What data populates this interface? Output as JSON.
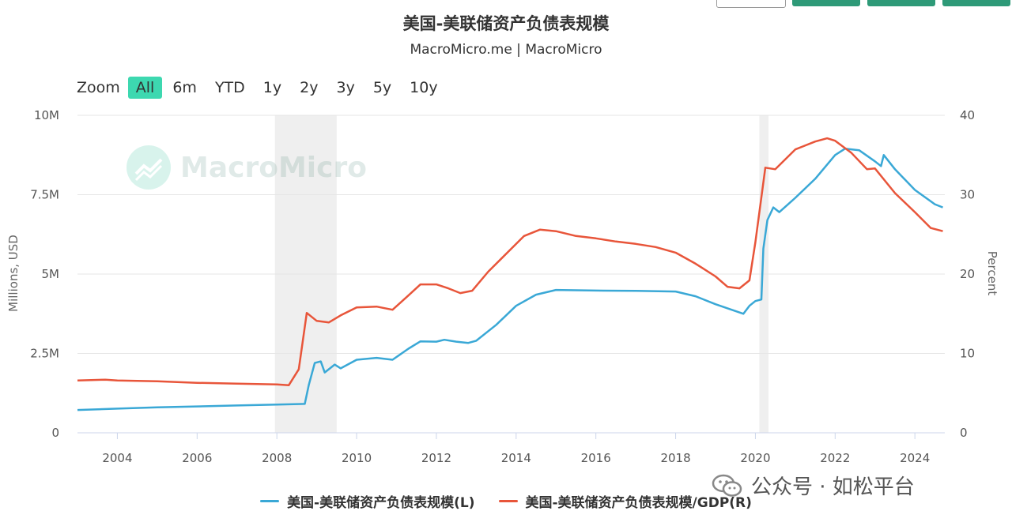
{
  "title": "美国-美联储资产负债表规模",
  "subtitle": "MacroMicro.me | MacroMicro",
  "zoom": {
    "label": "Zoom",
    "options": [
      "All",
      "6m",
      "YTD",
      "1y",
      "2y",
      "3y",
      "5y",
      "10y"
    ],
    "active": "All"
  },
  "watermark": "MacroMicro",
  "credit": "公众号 · 如松平台",
  "colors": {
    "left_series": "#3aa8d6",
    "right_series": "#e8553a",
    "recession": "#efefef"
  },
  "chart_data": {
    "type": "line",
    "x_ticks": [
      2004,
      2006,
      2008,
      2010,
      2012,
      2014,
      2016,
      2018,
      2020,
      2022,
      2024
    ],
    "xlim": [
      2003.0,
      2024.75
    ],
    "y_left": {
      "label": "Millions, USD",
      "ticks": [
        "0",
        "2.5M",
        "5M",
        "7.5M",
        "10M"
      ],
      "lim": [
        0,
        10000000
      ]
    },
    "y_right": {
      "label": "Percent",
      "ticks": [
        "0",
        "10",
        "20",
        "30",
        "40"
      ],
      "lim": [
        0,
        40
      ]
    },
    "recessions": [
      [
        2007.95,
        2009.5
      ],
      [
        2020.1,
        2020.33
      ]
    ],
    "grid": true,
    "legend_position": "bottom",
    "series": [
      {
        "name": "美国-美联储资产负债表规模(L)",
        "axis": "left",
        "points": [
          [
            2003.0,
            720000
          ],
          [
            2004.0,
            760000
          ],
          [
            2005.0,
            800000
          ],
          [
            2006.0,
            830000
          ],
          [
            2007.0,
            860000
          ],
          [
            2008.0,
            890000
          ],
          [
            2008.7,
            910000
          ],
          [
            2008.8,
            1500000
          ],
          [
            2008.95,
            2200000
          ],
          [
            2009.1,
            2250000
          ],
          [
            2009.2,
            1900000
          ],
          [
            2009.35,
            2050000
          ],
          [
            2009.45,
            2150000
          ],
          [
            2009.6,
            2030000
          ],
          [
            2010.0,
            2300000
          ],
          [
            2010.5,
            2360000
          ],
          [
            2010.9,
            2300000
          ],
          [
            2011.3,
            2650000
          ],
          [
            2011.6,
            2880000
          ],
          [
            2012.0,
            2870000
          ],
          [
            2012.2,
            2930000
          ],
          [
            2012.5,
            2870000
          ],
          [
            2012.8,
            2830000
          ],
          [
            2013.0,
            2900000
          ],
          [
            2013.5,
            3400000
          ],
          [
            2014.0,
            4000000
          ],
          [
            2014.5,
            4350000
          ],
          [
            2015.0,
            4500000
          ],
          [
            2016.0,
            4480000
          ],
          [
            2017.0,
            4470000
          ],
          [
            2018.0,
            4450000
          ],
          [
            2018.5,
            4300000
          ],
          [
            2019.0,
            4050000
          ],
          [
            2019.7,
            3750000
          ],
          [
            2019.85,
            4000000
          ],
          [
            2020.0,
            4150000
          ],
          [
            2020.15,
            4200000
          ],
          [
            2020.2,
            5800000
          ],
          [
            2020.3,
            6700000
          ],
          [
            2020.45,
            7100000
          ],
          [
            2020.6,
            6950000
          ],
          [
            2021.0,
            7400000
          ],
          [
            2021.5,
            8000000
          ],
          [
            2022.0,
            8750000
          ],
          [
            2022.25,
            8950000
          ],
          [
            2022.6,
            8900000
          ],
          [
            2023.0,
            8550000
          ],
          [
            2023.15,
            8400000
          ],
          [
            2023.22,
            8750000
          ],
          [
            2023.5,
            8300000
          ],
          [
            2024.0,
            7650000
          ],
          [
            2024.5,
            7200000
          ],
          [
            2024.7,
            7100000
          ]
        ]
      },
      {
        "name": "美国-美联储资产负债表规模/GDP(R)",
        "axis": "right",
        "points": [
          [
            2003.0,
            6.6
          ],
          [
            2003.7,
            6.7
          ],
          [
            2004.0,
            6.6
          ],
          [
            2005.0,
            6.5
          ],
          [
            2006.0,
            6.3
          ],
          [
            2007.0,
            6.2
          ],
          [
            2008.0,
            6.1
          ],
          [
            2008.3,
            6.0
          ],
          [
            2008.55,
            8.0
          ],
          [
            2008.75,
            15.1
          ],
          [
            2009.0,
            14.1
          ],
          [
            2009.3,
            13.9
          ],
          [
            2009.6,
            14.8
          ],
          [
            2010.0,
            15.8
          ],
          [
            2010.5,
            15.9
          ],
          [
            2010.9,
            15.5
          ],
          [
            2011.3,
            17.3
          ],
          [
            2011.6,
            18.7
          ],
          [
            2012.0,
            18.7
          ],
          [
            2012.3,
            18.2
          ],
          [
            2012.6,
            17.6
          ],
          [
            2012.9,
            17.9
          ],
          [
            2013.3,
            20.3
          ],
          [
            2013.8,
            22.8
          ],
          [
            2014.2,
            24.8
          ],
          [
            2014.6,
            25.6
          ],
          [
            2015.0,
            25.4
          ],
          [
            2015.5,
            24.8
          ],
          [
            2016.0,
            24.5
          ],
          [
            2016.5,
            24.1
          ],
          [
            2017.0,
            23.8
          ],
          [
            2017.5,
            23.4
          ],
          [
            2018.0,
            22.7
          ],
          [
            2018.5,
            21.3
          ],
          [
            2019.0,
            19.7
          ],
          [
            2019.3,
            18.4
          ],
          [
            2019.6,
            18.2
          ],
          [
            2019.85,
            19.2
          ],
          [
            2020.0,
            24.0
          ],
          [
            2020.25,
            33.4
          ],
          [
            2020.5,
            33.2
          ],
          [
            2021.0,
            35.7
          ],
          [
            2021.5,
            36.7
          ],
          [
            2021.8,
            37.1
          ],
          [
            2022.0,
            36.8
          ],
          [
            2022.4,
            35.3
          ],
          [
            2022.8,
            33.2
          ],
          [
            2023.0,
            33.3
          ],
          [
            2023.5,
            30.2
          ],
          [
            2024.0,
            27.8
          ],
          [
            2024.4,
            25.8
          ],
          [
            2024.7,
            25.4
          ]
        ]
      }
    ]
  }
}
